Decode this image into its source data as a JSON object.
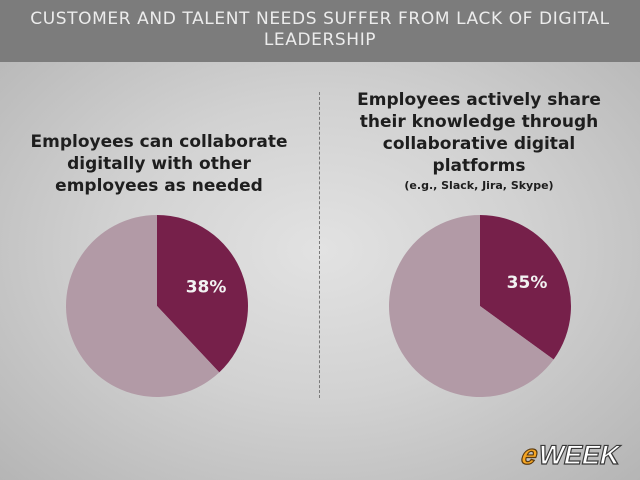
{
  "header": {
    "title": "CUSTOMER AND TALENT NEEDS SUFFER FROM LACK OF DIGITAL LEADERSHIP"
  },
  "colors": {
    "slice_highlight": "#76204a",
    "slice_rest": "#b29aa6",
    "header_bg": "#7c7c7c"
  },
  "chart_data": [
    {
      "type": "pie",
      "title": "Employees can collaborate digitally with other employees as needed",
      "subtitle": "",
      "slices": [
        {
          "value": 38,
          "label": "38%"
        },
        {
          "value": 62,
          "label": ""
        }
      ]
    },
    {
      "type": "pie",
      "title": "Employees actively share their knowledge through collaborative digital platforms",
      "subtitle": "(e.g., Slack, Jira, Skype)",
      "slices": [
        {
          "value": 35,
          "label": "35%"
        },
        {
          "value": 65,
          "label": ""
        }
      ]
    }
  ],
  "logo": {
    "text": "eWEEK"
  }
}
